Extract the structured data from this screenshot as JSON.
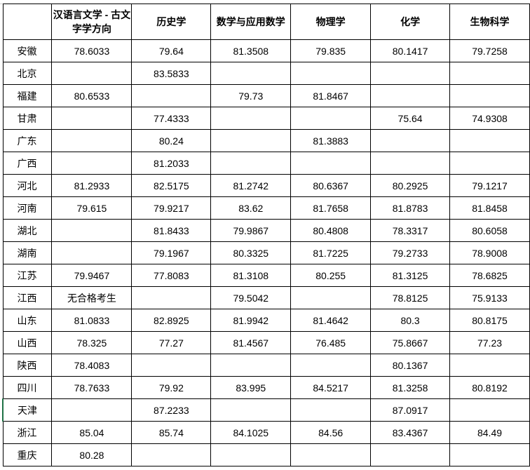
{
  "table": {
    "headers": [
      "",
      "汉语言文学 - 古文字学方向",
      "历史学",
      "数学与应用数学",
      "物理学",
      "化学",
      "生物科学"
    ],
    "rows": [
      [
        "安徽",
        "78.6033",
        "79.64",
        "81.3508",
        "79.835",
        "80.1417",
        "79.7258"
      ],
      [
        "北京",
        "",
        "83.5833",
        "",
        "",
        "",
        ""
      ],
      [
        "福建",
        "80.6533",
        "",
        "79.73",
        "81.8467",
        "",
        ""
      ],
      [
        "甘肃",
        "",
        "77.4333",
        "",
        "",
        "75.64",
        "74.9308"
      ],
      [
        "广东",
        "",
        "80.24",
        "",
        "81.3883",
        "",
        ""
      ],
      [
        "广西",
        "",
        "81.2033",
        "",
        "",
        "",
        ""
      ],
      [
        "河北",
        "81.2933",
        "82.5175",
        "81.2742",
        "80.6367",
        "80.2925",
        "79.1217"
      ],
      [
        "河南",
        "79.615",
        "79.9217",
        "83.62",
        "81.7658",
        "81.8783",
        "81.8458"
      ],
      [
        "湖北",
        "",
        "81.8433",
        "79.9867",
        "80.4808",
        "78.3317",
        "80.6058"
      ],
      [
        "湖南",
        "",
        "79.1967",
        "80.3325",
        "81.7225",
        "79.2733",
        "78.9008"
      ],
      [
        "江苏",
        "79.9467",
        "77.8083",
        "81.3108",
        "80.255",
        "81.3125",
        "78.6825"
      ],
      [
        "江西",
        "无合格考生",
        "",
        "79.5042",
        "",
        "78.8125",
        "75.9133"
      ],
      [
        "山东",
        "81.0833",
        "82.8925",
        "81.9942",
        "81.4642",
        "80.3",
        "80.8175"
      ],
      [
        "山西",
        "78.325",
        "77.27",
        "81.4567",
        "76.485",
        "75.8667",
        "77.23"
      ],
      [
        "陕西",
        "78.4083",
        "",
        "",
        "",
        "80.1367",
        ""
      ],
      [
        "四川",
        "78.7633",
        "79.92",
        "83.995",
        "84.5217",
        "81.3258",
        "80.8192"
      ],
      [
        "天津",
        "",
        "87.2233",
        "",
        "",
        "87.0917",
        ""
      ],
      [
        "浙江",
        "85.04",
        "85.74",
        "84.1025",
        "84.56",
        "83.4367",
        "84.49"
      ],
      [
        "重庆",
        "80.28",
        "",
        "",
        "",
        "",
        ""
      ]
    ]
  }
}
